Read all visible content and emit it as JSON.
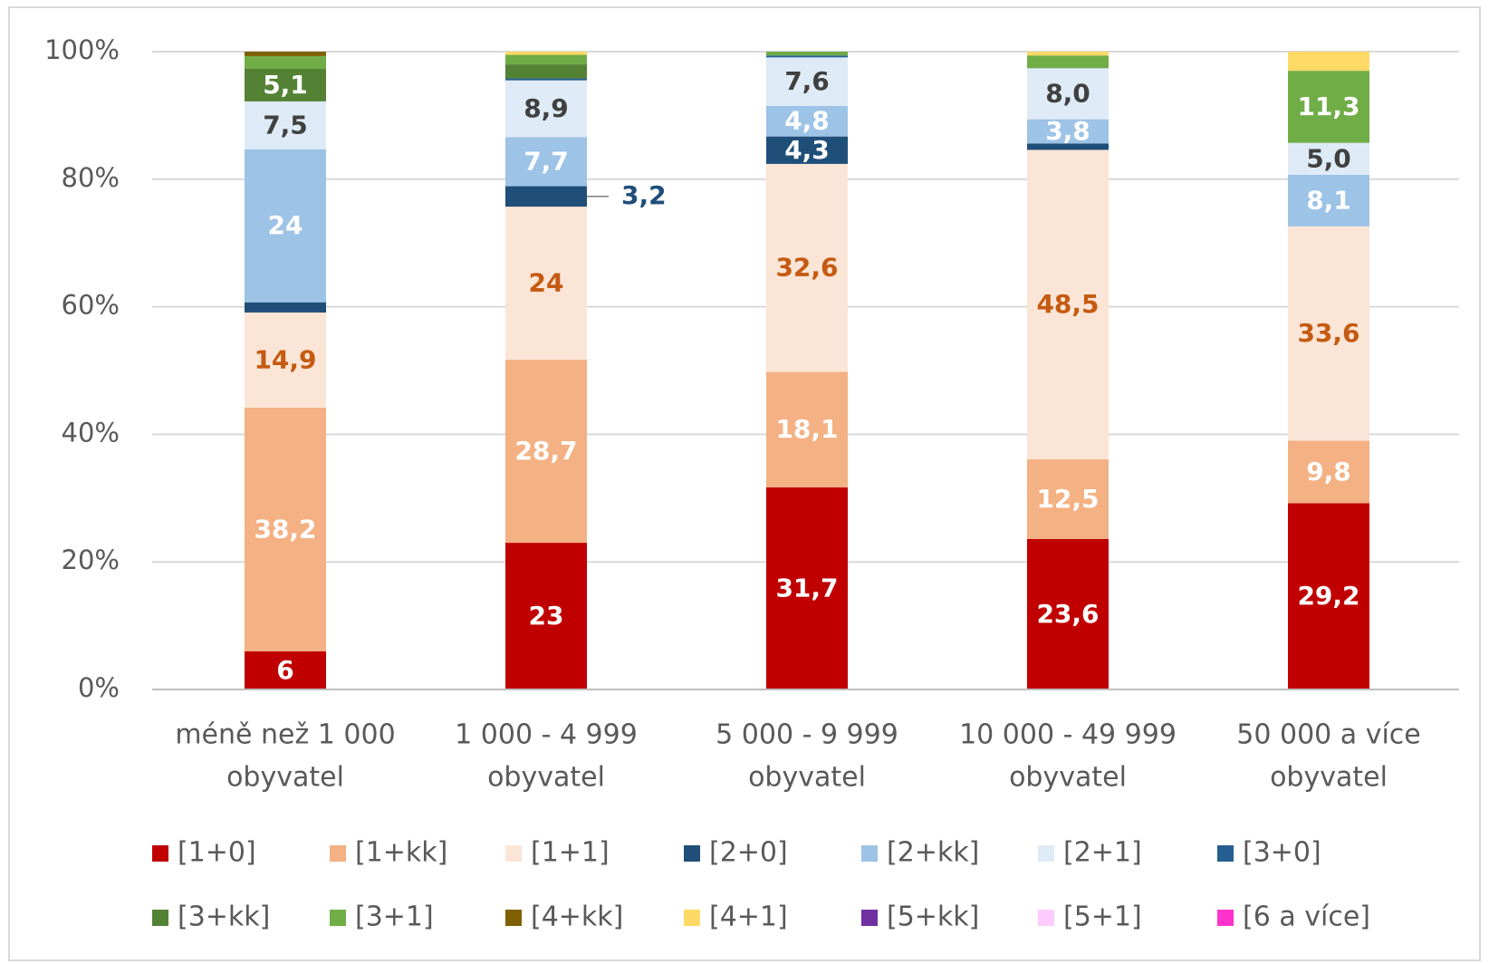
{
  "chart_data": {
    "type": "stacked_bar_100",
    "categories": [
      [
        "méně než 1 000",
        "obyvatel"
      ],
      [
        "1 000 - 4 999",
        "obyvatel"
      ],
      [
        "5 000 - 9 999",
        "obyvatel"
      ],
      [
        "10 000 - 49 999",
        "obyvatel"
      ],
      [
        "50 000 a více",
        "obyvatel"
      ]
    ],
    "ylim": [
      0,
      100
    ],
    "yticks": [
      {
        "value": 0,
        "label": "0%"
      },
      {
        "value": 20,
        "label": "20%"
      },
      {
        "value": 40,
        "label": "40%"
      },
      {
        "value": 60,
        "label": "60%"
      },
      {
        "value": 80,
        "label": "80%"
      },
      {
        "value": 100,
        "label": "100%"
      }
    ],
    "grid": true,
    "legend": "bottom",
    "series": [
      {
        "name": "[1+0]",
        "color": "#c00000",
        "values": [
          6,
          23,
          31.7,
          23.6,
          29.2
        ],
        "value_labels": [
          "6",
          "23",
          "31,7",
          "23,6",
          "29,2"
        ]
      },
      {
        "name": "[1+kk]",
        "color": "#f4b183",
        "values": [
          38.2,
          28.7,
          18.1,
          12.5,
          9.8
        ],
        "value_labels": [
          "38,2",
          "28,7",
          "18,1",
          "12,5",
          "9,8"
        ]
      },
      {
        "name": "[1+1]",
        "color": "#fbe5d6",
        "values": [
          14.9,
          24,
          32.6,
          48.5,
          33.6
        ],
        "value_labels": [
          "14,9",
          "24",
          "32,6",
          "48,5",
          "33,6"
        ]
      },
      {
        "name": "[2+0]",
        "color": "#1f4e79",
        "values": [
          1.6,
          3.2,
          4.3,
          1,
          0
        ],
        "value_labels": [
          null,
          "3,2",
          "4,3",
          null,
          null
        ]
      },
      {
        "name": "[2+kk]",
        "color": "#9dc3e6",
        "values": [
          24,
          7.7,
          4.8,
          3.8,
          8.1
        ],
        "value_labels": [
          "24",
          "7,7",
          "4,8",
          "3,8",
          "8,1"
        ]
      },
      {
        "name": "[2+1]",
        "color": "#deebf7",
        "values": [
          7.5,
          8.9,
          7.6,
          8.0,
          5.0
        ],
        "value_labels": [
          "7,5",
          "8,9",
          "7,6",
          "8,0",
          "5,0"
        ]
      },
      {
        "name": "[3+0]",
        "color": "#255e91",
        "values": [
          0,
          0.3,
          0.3,
          0,
          0
        ],
        "value_labels": [
          null,
          null,
          null,
          null,
          null
        ]
      },
      {
        "name": "[3+kk]",
        "color": "#548235",
        "values": [
          5.1,
          2.2,
          0,
          0,
          0
        ],
        "value_labels": [
          "5,1",
          null,
          null,
          null,
          null
        ]
      },
      {
        "name": "[3+1]",
        "color": "#70ad47",
        "values": [
          2,
          1.5,
          0.6,
          2,
          11.3
        ],
        "value_labels": [
          null,
          null,
          null,
          null,
          "11,3"
        ]
      },
      {
        "name": "[4+kk]",
        "color": "#7f6000",
        "values": [
          0.7,
          0,
          0,
          0,
          0
        ],
        "value_labels": [
          null,
          null,
          null,
          null,
          null
        ]
      },
      {
        "name": "[4+1]",
        "color": "#ffd966",
        "values": [
          0,
          0.5,
          0,
          0.6,
          3
        ],
        "value_labels": [
          null,
          null,
          null,
          null,
          null
        ]
      },
      {
        "name": "[5+kk]",
        "color": "#7030a0",
        "values": [
          0,
          0,
          0,
          0,
          0
        ],
        "value_labels": [
          null,
          null,
          null,
          null,
          null
        ]
      },
      {
        "name": "[5+1]",
        "color": "#ffccff",
        "values": [
          0,
          0,
          0,
          0,
          0
        ],
        "value_labels": [
          null,
          null,
          null,
          null,
          null
        ]
      },
      {
        "name": "[6 a více]",
        "color": "#ff33cc",
        "values": [
          0,
          0,
          0,
          0,
          0
        ],
        "value_labels": [
          null,
          null,
          null,
          null,
          null
        ]
      }
    ]
  }
}
